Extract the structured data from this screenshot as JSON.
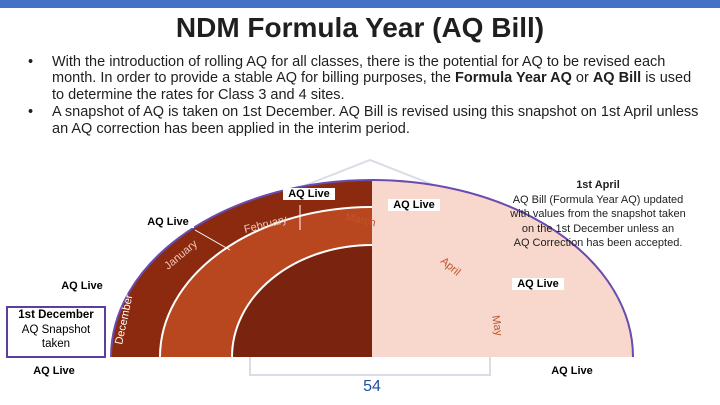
{
  "title": "NDM Formula Year (AQ Bill)",
  "bullets": {
    "b1": {
      "part1": "With the introduction of rolling AQ for all classes, there is the potential for AQ to be revised each month. In order to provide a stable AQ for billing purposes, the ",
      "bold1": "Formula Year AQ",
      "part2": " or ",
      "bold2": "AQ Bill",
      "part3": " is used to determine the rates for Class 3 and 4 sites."
    },
    "b2": "A snapshot of AQ is taken on 1st December. AQ Bill is revised using this snapshot on 1st April unless an AQ correction has been applied in the interim period.",
    "marker": "•"
  },
  "diagram": {
    "months": [
      "December",
      "January",
      "February",
      "March",
      "April",
      "May"
    ],
    "aq_live": "AQ Live",
    "december_box": {
      "title": "1st December",
      "line1": "AQ Snapshot",
      "line2": "taken"
    },
    "april_callout": {
      "title": "1st April",
      "line1": "AQ Bill (Formula Year AQ) updated",
      "line2": "with values from the snapshot taken",
      "line3": "on the 1st December unless an",
      "line4": "AQ Correction has been accepted."
    },
    "colors": {
      "dark": "#8b2a0e",
      "mid": "#c0542b",
      "light": "#f8d8cc",
      "ring": "#6a4bb0",
      "box_border": "#5b3f9e"
    }
  },
  "page_number": "54"
}
